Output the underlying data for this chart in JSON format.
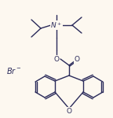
{
  "bg_color": "#fdf8f0",
  "line_color": "#2a2a5a",
  "text_color": "#2a2a5a",
  "figsize": [
    1.44,
    1.5
  ],
  "dpi": 100,
  "br_label": "Br",
  "n_label": "N",
  "o_ester1": "O",
  "o_ester2": "O",
  "o_xanthene": "O"
}
